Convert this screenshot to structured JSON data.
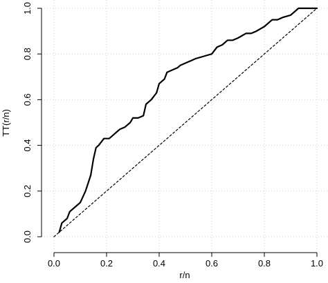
{
  "chart_data": {
    "type": "line",
    "title": "",
    "xlabel": "r/n",
    "ylabel": "TT(r/n)",
    "xlim": [
      0.0,
      1.0
    ],
    "ylim": [
      0.0,
      1.0
    ],
    "grid": true,
    "x_ticks": [
      "0.0",
      "0.2",
      "0.4",
      "0.6",
      "0.8",
      "1.0"
    ],
    "y_ticks": [
      "0.0",
      "0.2",
      "0.4",
      "0.6",
      "0.8",
      "1.0"
    ],
    "series": [
      {
        "style": "solid",
        "x": [
          0.02,
          0.03,
          0.04,
          0.05,
          0.06,
          0.07,
          0.08,
          0.1,
          0.12,
          0.14,
          0.15,
          0.16,
          0.17,
          0.19,
          0.21,
          0.22,
          0.24,
          0.25,
          0.27,
          0.29,
          0.3,
          0.32,
          0.34,
          0.35,
          0.37,
          0.39,
          0.4,
          0.42,
          0.43,
          0.45,
          0.47,
          0.48,
          0.5,
          0.52,
          0.54,
          0.57,
          0.6,
          0.62,
          0.64,
          0.66,
          0.68,
          0.7,
          0.73,
          0.75,
          0.77,
          0.8,
          0.83,
          0.85,
          0.87,
          0.9,
          0.93,
          0.95,
          0.97,
          1.0
        ],
        "y": [
          0.02,
          0.06,
          0.07,
          0.08,
          0.11,
          0.12,
          0.13,
          0.15,
          0.2,
          0.27,
          0.34,
          0.39,
          0.4,
          0.43,
          0.43,
          0.44,
          0.46,
          0.47,
          0.48,
          0.5,
          0.52,
          0.52,
          0.53,
          0.58,
          0.6,
          0.63,
          0.67,
          0.69,
          0.72,
          0.73,
          0.74,
          0.75,
          0.76,
          0.77,
          0.78,
          0.79,
          0.8,
          0.83,
          0.84,
          0.86,
          0.86,
          0.87,
          0.89,
          0.89,
          0.9,
          0.92,
          0.95,
          0.95,
          0.96,
          0.97,
          1.0,
          1.0,
          1.0,
          1.0
        ]
      },
      {
        "style": "dashed",
        "x": [
          0.0,
          1.0
        ],
        "y": [
          0.0,
          1.0
        ]
      }
    ]
  }
}
